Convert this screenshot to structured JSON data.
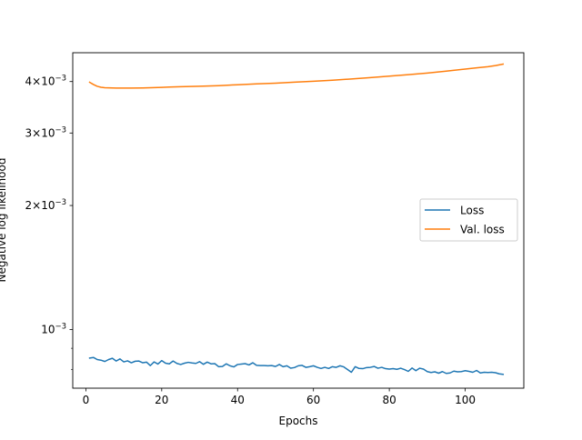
{
  "chart_data": {
    "type": "line",
    "title": "",
    "xlabel": "Epochs",
    "ylabel": "Negative log likelihood",
    "yscale": "log",
    "xlim": [
      -3.45,
      115.45
    ],
    "ylim": [
      0.00072,
      0.0047
    ],
    "grid": false,
    "legend_position": "center-right",
    "x_ticks": [
      0,
      20,
      40,
      60,
      80,
      100
    ],
    "x_tick_labels": [
      "0",
      "20",
      "40",
      "60",
      "80",
      "100"
    ],
    "y_ticks": [
      {
        "value": 0.001,
        "mant": "10",
        "exp": "−3"
      },
      {
        "value": 0.002,
        "mant": "2×10",
        "exp": "−3"
      },
      {
        "value": 0.003,
        "mant": "3×10",
        "exp": "−3"
      },
      {
        "value": 0.004,
        "mant": "4×10",
        "exp": "−3"
      }
    ],
    "series": [
      {
        "name": "Loss",
        "color": "#1f77b4",
        "x": [
          1,
          2,
          3,
          4,
          5,
          6,
          7,
          8,
          9,
          10,
          11,
          12,
          13,
          14,
          15,
          16,
          17,
          18,
          19,
          20,
          21,
          22,
          23,
          24,
          25,
          26,
          27,
          28,
          29,
          30,
          31,
          32,
          33,
          34,
          35,
          36,
          37,
          38,
          39,
          40,
          41,
          42,
          43,
          44,
          45,
          46,
          47,
          48,
          49,
          50,
          51,
          52,
          53,
          54,
          55,
          56,
          57,
          58,
          59,
          60,
          61,
          62,
          63,
          64,
          65,
          66,
          67,
          68,
          69,
          70,
          71,
          72,
          73,
          74,
          75,
          76,
          77,
          78,
          79,
          80,
          81,
          82,
          83,
          84,
          85,
          86,
          87,
          88,
          89,
          90,
          91,
          92,
          93,
          94,
          95,
          96,
          97,
          98,
          99,
          100,
          101,
          102,
          103,
          104,
          105,
          106,
          107,
          108,
          109,
          110
        ],
        "y": [
          0.000852,
          0.000855,
          0.000845,
          0.000842,
          0.000836,
          0.000845,
          0.000851,
          0.000838,
          0.000848,
          0.000834,
          0.000839,
          0.00083,
          0.000837,
          0.000838,
          0.00083,
          0.000833,
          0.000817,
          0.000834,
          0.000824,
          0.00084,
          0.000828,
          0.000825,
          0.000838,
          0.000827,
          0.000822,
          0.000828,
          0.000832,
          0.000829,
          0.000827,
          0.000835,
          0.000823,
          0.000833,
          0.000825,
          0.000826,
          0.000812,
          0.000813,
          0.000825,
          0.000816,
          0.000811,
          0.000822,
          0.000824,
          0.000826,
          0.00082,
          0.00083,
          0.000818,
          0.000817,
          0.000817,
          0.000816,
          0.000817,
          0.000813,
          0.000822,
          0.000812,
          0.000816,
          0.000805,
          0.000808,
          0.000816,
          0.000818,
          0.000809,
          0.000812,
          0.000816,
          0.000809,
          0.000804,
          0.000809,
          0.000804,
          0.000812,
          0.000809,
          0.000816,
          0.000811,
          0.000799,
          0.000787,
          0.000812,
          0.000804,
          0.000803,
          0.000808,
          0.000809,
          0.000813,
          0.000805,
          0.000809,
          0.000803,
          0.000801,
          0.000803,
          0.0008,
          0.000805,
          0.000799,
          0.000791,
          0.000806,
          0.000794,
          0.000805,
          0.000801,
          0.00079,
          0.000786,
          0.000789,
          0.000783,
          0.00079,
          0.000782,
          0.000784,
          0.000792,
          0.000789,
          0.00079,
          0.000794,
          0.000791,
          0.000787,
          0.000795,
          0.000784,
          0.000787,
          0.000786,
          0.000787,
          0.000785,
          0.00078,
          0.000778
        ]
      },
      {
        "name": "Val. loss",
        "color": "#ff7f0e",
        "x": [
          1,
          2,
          3,
          4,
          5,
          6,
          8,
          10,
          12,
          15,
          18,
          20,
          22,
          25,
          30,
          35,
          40,
          45,
          50,
          55,
          60,
          65,
          70,
          75,
          80,
          85,
          90,
          95,
          100,
          103,
          106,
          108,
          110
        ],
        "y": [
          0.003985,
          0.003935,
          0.003895,
          0.003875,
          0.003865,
          0.003862,
          0.003858,
          0.003856,
          0.003858,
          0.00386,
          0.003866,
          0.003872,
          0.003878,
          0.003886,
          0.003896,
          0.00391,
          0.00393,
          0.003948,
          0.003965,
          0.003986,
          0.004008,
          0.00403,
          0.004058,
          0.00409,
          0.004122,
          0.004158,
          0.004195,
          0.00424,
          0.00429,
          0.004318,
          0.004346,
          0.004375,
          0.004411
        ]
      }
    ]
  }
}
